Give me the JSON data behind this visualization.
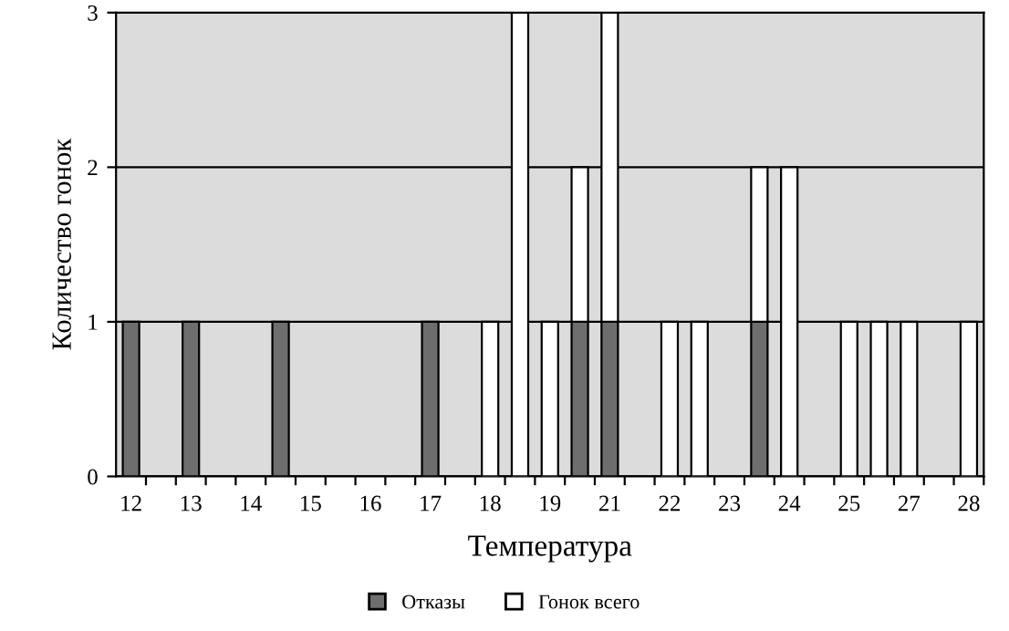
{
  "chart_data": {
    "type": "bar",
    "stacked": true,
    "xlabel": "Температура",
    "ylabel": "Количество гонок",
    "categories": [
      "12",
      null,
      "13",
      null,
      "14",
      null,
      "15",
      null,
      "16",
      null,
      "17",
      null,
      "18",
      null,
      "19",
      null,
      "21",
      null,
      "22",
      null,
      "23",
      null,
      "24",
      null,
      "25",
      null,
      "27",
      null,
      "28"
    ],
    "series": [
      {
        "name": "Отказы",
        "color": "#6e6e6e",
        "values": [
          1,
          null,
          1,
          null,
          null,
          1,
          null,
          null,
          null,
          null,
          1,
          null,
          null,
          null,
          null,
          1,
          1,
          null,
          null,
          null,
          null,
          1,
          null,
          null,
          null,
          null,
          null,
          null,
          null
        ]
      },
      {
        "name": "Гонок всего",
        "color": "#ffffff",
        "values": [
          null,
          null,
          null,
          null,
          null,
          null,
          null,
          null,
          null,
          null,
          null,
          null,
          1,
          3,
          1,
          1,
          2,
          null,
          1,
          1,
          null,
          1,
          2,
          null,
          1,
          1,
          1,
          null,
          1
        ]
      }
    ],
    "ylim": [
      0,
      3
    ],
    "yticks": [
      0,
      1,
      2,
      3
    ],
    "grid": "y",
    "legend": "bottom"
  }
}
